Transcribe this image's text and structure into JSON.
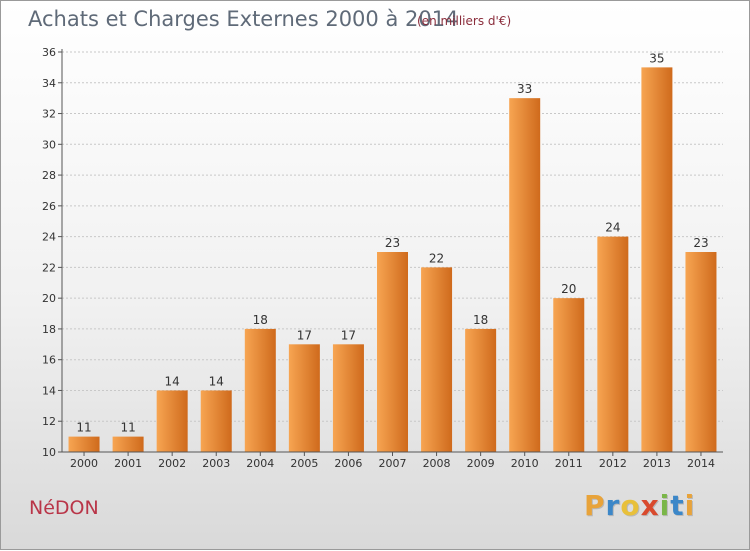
{
  "header": {
    "title": "Achats et Charges Externes 2000 à 2014",
    "unit": "(en milliers d'€)"
  },
  "footer": {
    "city": "NéDON",
    "brand_letters": [
      "P",
      "r",
      "o",
      "x",
      "i",
      "t",
      "i"
    ],
    "brand_colors": [
      "#e8a33a",
      "#3c87c8",
      "#e8c03a",
      "#d94a2d",
      "#7ab648",
      "#3c87c8",
      "#e8a33a"
    ]
  },
  "colors": {
    "bar_light": "#f7a552",
    "bar_dark": "#cf6a1c",
    "title": "#5f6a78",
    "unit": "#8b2d3c",
    "city": "#b93548"
  },
  "chart_data": {
    "type": "bar",
    "title": "Achats et Charges Externes 2000 à 2014",
    "subtitle": "(en milliers d'€)",
    "categories": [
      "2000",
      "2001",
      "2002",
      "2003",
      "2004",
      "2005",
      "2006",
      "2007",
      "2008",
      "2009",
      "2010",
      "2011",
      "2012",
      "2013",
      "2014"
    ],
    "values": [
      11,
      11,
      14,
      14,
      18,
      17,
      17,
      23,
      22,
      18,
      33,
      20,
      24,
      35,
      23
    ],
    "ylim": [
      10,
      36
    ],
    "yticks": [
      10,
      12,
      14,
      16,
      18,
      20,
      22,
      24,
      26,
      28,
      30,
      32,
      34,
      36
    ],
    "grid": true
  }
}
